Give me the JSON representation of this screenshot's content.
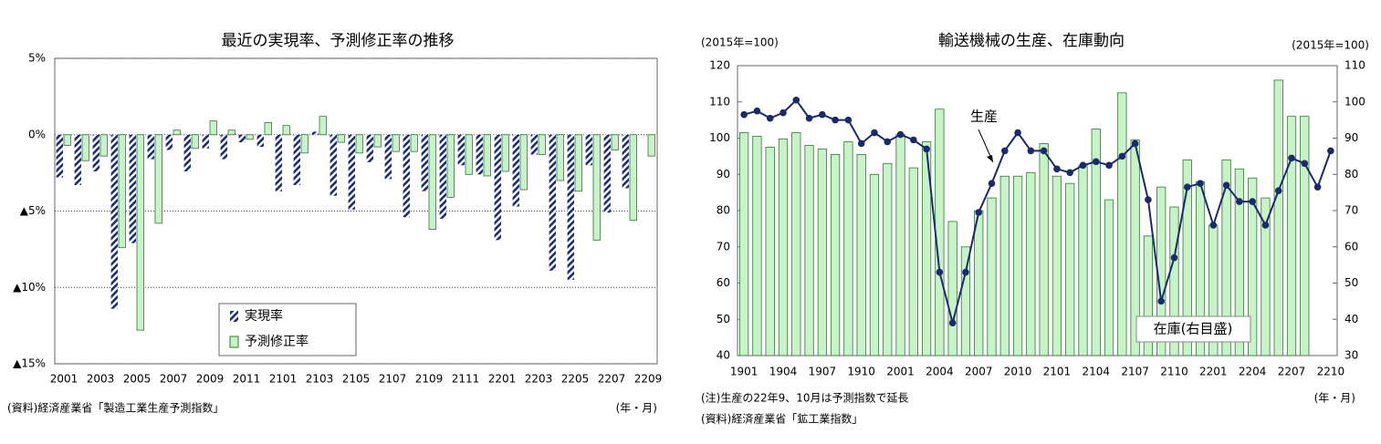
{
  "chart_data": [
    {
      "type": "bar",
      "title": "最近の実現率、予測修正率の推移",
      "categories": [
        "2001",
        null,
        "2003",
        null,
        "2005",
        null,
        "2007",
        null,
        "2009",
        null,
        "2011",
        null,
        "2101",
        null,
        "2103",
        null,
        "2105",
        null,
        "2107",
        null,
        "2109",
        null,
        "2111",
        null,
        "2201",
        null,
        "2203",
        null,
        "2205",
        null,
        "2207",
        null,
        "2209"
      ],
      "series": [
        {
          "name": "実現率",
          "color": "#1c2b7a",
          "hatch": true,
          "values": [
            -2.8,
            -3.3,
            -2.4,
            -11.4,
            -7.1,
            -1.6,
            -1.0,
            -2.4,
            -0.9,
            -1.6,
            -0.5,
            -0.8,
            -3.7,
            -3.3,
            0.2,
            -4.0,
            -4.9,
            -1.8,
            -2.9,
            -5.4,
            -3.7,
            -5.5,
            -2.0,
            -2.6,
            -6.9,
            -4.7,
            -1.3,
            -8.9,
            -9.5,
            -2.0,
            -5.1,
            -3.5,
            null
          ]
        },
        {
          "name": "予測修正率",
          "color": "#c8f2c8",
          "hatch": false,
          "values": [
            -0.7,
            -1.7,
            -1.4,
            -7.4,
            -12.8,
            -5.8,
            0.3,
            -0.9,
            0.9,
            0.3,
            -0.3,
            0.8,
            0.6,
            -1.2,
            1.2,
            -0.5,
            -1.2,
            -0.8,
            -1.1,
            -1.1,
            -6.2,
            -4.1,
            -2.6,
            -2.7,
            -2.4,
            -3.6,
            -1.3,
            -3.0,
            -3.7,
            -6.9,
            -1.0,
            -5.6,
            -1.4
          ]
        }
      ],
      "ylim": [
        -15,
        5
      ],
      "yticks": [
        {
          "value": 5,
          "label": "5%"
        },
        {
          "value": 0,
          "label": "0%"
        },
        {
          "value": -5,
          "label": "▲5%"
        },
        {
          "value": -10,
          "label": "▲10%"
        },
        {
          "value": -15,
          "label": "▲15%"
        }
      ],
      "grid": true,
      "source": "(資料)経済産業省「製造工業生産予測指数」",
      "xlabel": "(年・月)"
    },
    {
      "type": "bar_line",
      "title": "輸送機械の生産、在庫動向",
      "categories": [
        "1901",
        null,
        null,
        "1904",
        null,
        null,
        "1907",
        null,
        null,
        "1910",
        null,
        null,
        "2001",
        null,
        null,
        "2004",
        null,
        null,
        "2007",
        null,
        null,
        "2010",
        null,
        null,
        "2101",
        null,
        null,
        "2104",
        null,
        null,
        "2107",
        null,
        null,
        "2110",
        null,
        null,
        "2201",
        null,
        null,
        "2204",
        null,
        null,
        "2207",
        null,
        null,
        "2210"
      ],
      "series": [
        {
          "name": "在庫(右目盛)",
          "type": "bar",
          "axis": "y2",
          "color": "#c8f2c8",
          "values": [
            91.5,
            90.5,
            87.5,
            89.8,
            91.5,
            88,
            87,
            85.5,
            89,
            85.5,
            80,
            83,
            91,
            81.8,
            89,
            98,
            67,
            60,
            70,
            73.5,
            79.5,
            79.5,
            80.5,
            88.5,
            79.5,
            77.5,
            82.5,
            92.5,
            73,
            102.5,
            89.5,
            63,
            76.5,
            71,
            84,
            78,
            66,
            84,
            81.5,
            79,
            73.5,
            106,
            96,
            96,
            null,
            null
          ]
        },
        {
          "name": "生産",
          "type": "line",
          "axis": "y",
          "color": "#1a2a6c",
          "values": [
            106.5,
            107.5,
            105.5,
            107,
            110.5,
            105.5,
            106.5,
            105,
            105,
            98.5,
            101.5,
            99,
            101,
            99.5,
            97,
            63,
            49,
            63,
            79.5,
            87.5,
            96.5,
            101.5,
            96.5,
            96.5,
            91.5,
            90.5,
            92.5,
            93.5,
            92.5,
            95,
            98.5,
            83,
            55,
            67,
            86.5,
            87.5,
            76,
            87,
            82.5,
            82.5,
            76,
            85.5,
            94.5,
            93,
            86.5,
            96.5
          ]
        }
      ],
      "ylim": [
        40,
        120
      ],
      "yticks": [
        40,
        50,
        60,
        70,
        80,
        90,
        100,
        110,
        120
      ],
      "y2lim": [
        30,
        110
      ],
      "y2ticks": [
        30,
        40,
        50,
        60,
        70,
        80,
        90,
        100,
        110
      ],
      "ylabel": "(2015年=100)",
      "y2label": "(2015年=100)",
      "grid": false,
      "note": "(注)生産の22年9、10月は予測指数で延長",
      "source": "(資料)経済産業省「鉱工業指数」",
      "xlabel": "(年・月)"
    }
  ]
}
